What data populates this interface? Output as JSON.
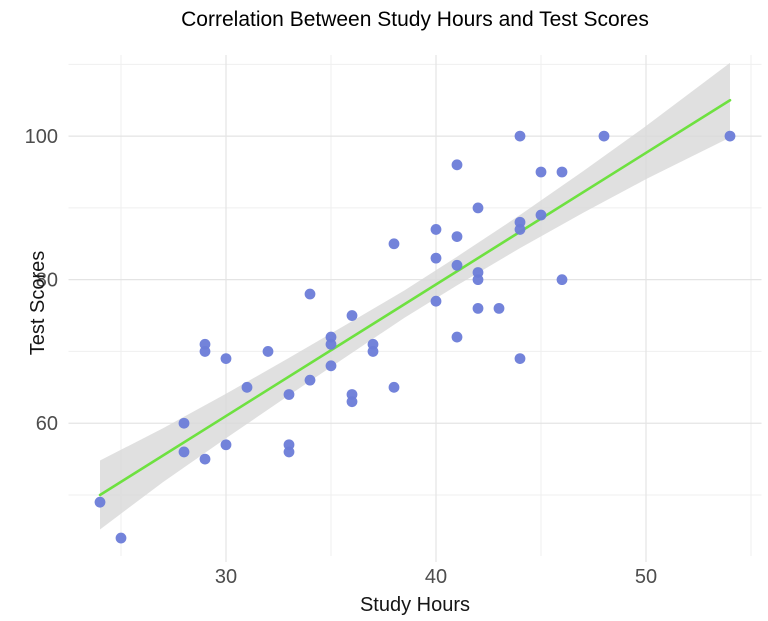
{
  "chart_data": {
    "type": "scatter",
    "title": "Correlation Between Study Hours and Test Scores",
    "xlabel": "Study Hours",
    "ylabel": "Test Scores",
    "x_ticks": [
      30,
      40,
      50
    ],
    "y_ticks": [
      60,
      80,
      100
    ],
    "x_minor_ticks": [
      25,
      35,
      45,
      55
    ],
    "y_minor_ticks": [
      50,
      70,
      90,
      110
    ],
    "xlim": [
      22.5,
      55.5
    ],
    "ylim": [
      41.5,
      111.3
    ],
    "grid": true,
    "legend": false,
    "points": [
      [
        24,
        49
      ],
      [
        25,
        44
      ],
      [
        28,
        60
      ],
      [
        28,
        56
      ],
      [
        29,
        71
      ],
      [
        29,
        70
      ],
      [
        29,
        55
      ],
      [
        30,
        69
      ],
      [
        30,
        57
      ],
      [
        31,
        65
      ],
      [
        32,
        70
      ],
      [
        33,
        64
      ],
      [
        33,
        57
      ],
      [
        33,
        56
      ],
      [
        34,
        78
      ],
      [
        34,
        66
      ],
      [
        35,
        72
      ],
      [
        35,
        71
      ],
      [
        35,
        68
      ],
      [
        36,
        75
      ],
      [
        36,
        64
      ],
      [
        36,
        63
      ],
      [
        37,
        71
      ],
      [
        37,
        70
      ],
      [
        38,
        85
      ],
      [
        38,
        65
      ],
      [
        40,
        87
      ],
      [
        40,
        83
      ],
      [
        40,
        77
      ],
      [
        41,
        96
      ],
      [
        41,
        86
      ],
      [
        41,
        82
      ],
      [
        41,
        72
      ],
      [
        42,
        90
      ],
      [
        42,
        81
      ],
      [
        42,
        80
      ],
      [
        42,
        76
      ],
      [
        43,
        76
      ],
      [
        44,
        100
      ],
      [
        44,
        88
      ],
      [
        44,
        87
      ],
      [
        44,
        69
      ],
      [
        45,
        95
      ],
      [
        45,
        89
      ],
      [
        46,
        95
      ],
      [
        46,
        80
      ],
      [
        48,
        100
      ],
      [
        54,
        100
      ]
    ],
    "regression_line": {
      "x": [
        24,
        54
      ],
      "y": [
        50,
        105
      ]
    },
    "ci_band": {
      "x": [
        24,
        27,
        30,
        33,
        36,
        38.5,
        41,
        44,
        47,
        50,
        54
      ],
      "upper": [
        54.8,
        59.3,
        64.1,
        69.1,
        74.2,
        78.5,
        83.2,
        89.0,
        95.1,
        101.4,
        110.2
      ],
      "lower": [
        45.2,
        51.8,
        57.9,
        63.9,
        69.8,
        74.7,
        79.2,
        84.4,
        89.3,
        94.0,
        99.8
      ]
    },
    "colors": {
      "background": "#ffffff",
      "point": "#6b7cd8",
      "line": "#6ee140",
      "band": "#d8d8d8",
      "grid_major": "#e4e4e4",
      "grid_minor": "#efefef",
      "tick_label": "#4d4d4d",
      "title": "#000000",
      "axis_label": "#151515"
    }
  }
}
